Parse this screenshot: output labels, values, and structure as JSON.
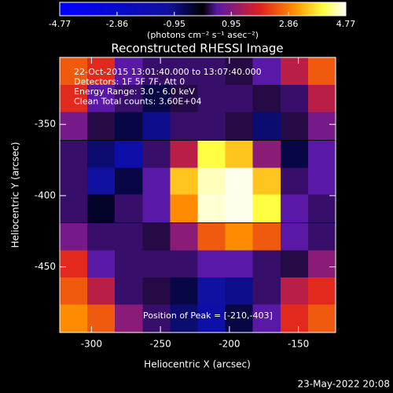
{
  "chart_data": {
    "type": "heatmap",
    "title": "Reconstructed RHESSI Image",
    "x_label": "Heliocentric X (arcsec)",
    "y_label": "Heliocentric Y (arcsec)",
    "colorbar_label": "(photons cm⁻² s⁻¹ asec⁻²)",
    "annotations": [
      "22-Oct-2015 13:01:40.000 to 13:07:40.000",
      "Detectors: 1F 5F 7F, Att 0",
      "Energy Range: 3.0 - 6.0 keV",
      "Clean    Total counts: 3.60E+04"
    ],
    "peak_label": "Position of Peak = [-210,-403]",
    "footer": "23-May-2022 20:08",
    "xlim": [
      -323,
      -123
    ],
    "ylim": [
      -496,
      -303
    ],
    "xticks": [
      -300,
      -250,
      -200,
      -150
    ],
    "yticks": [
      -350,
      -400,
      -450
    ],
    "clim": [
      -4.77,
      4.77
    ],
    "cticks": [
      -4.77,
      -2.86,
      -0.95,
      0.95,
      2.86,
      4.77
    ],
    "x": [
      -313,
      -293,
      -273,
      -253,
      -233,
      -213,
      -193,
      -173,
      -153,
      -133
    ],
    "y": [
      -313,
      -332,
      -351,
      -371,
      -390,
      -409,
      -429,
      -448,
      -467,
      -486
    ],
    "z": [
      [
        2.5,
        2.0,
        0.5,
        0.3,
        0.3,
        0.3,
        0.2,
        0.5,
        1.5,
        2.5
      ],
      [
        2.0,
        0.5,
        0.3,
        -0.5,
        0.2,
        0.3,
        0.3,
        0.2,
        0.3,
        1.5
      ],
      [
        0.8,
        0.2,
        -0.5,
        -1.0,
        0.3,
        0.3,
        0.2,
        -0.8,
        0.2,
        0.8
      ],
      [
        0.3,
        -0.8,
        -1.5,
        0.3,
        1.5,
        4.0,
        3.5,
        1.0,
        -0.5,
        0.5
      ],
      [
        0.3,
        -1.2,
        -0.5,
        0.5,
        3.5,
        4.5,
        4.7,
        3.5,
        0.3,
        0.5
      ],
      [
        0.3,
        -0.3,
        0.3,
        0.5,
        3.0,
        4.6,
        4.7,
        4.0,
        0.5,
        0.3
      ],
      [
        0.8,
        0.3,
        0.3,
        0.2,
        1.0,
        2.5,
        3.0,
        2.5,
        0.5,
        0.3
      ],
      [
        2.0,
        0.5,
        0.3,
        0.3,
        0.3,
        0.5,
        0.5,
        0.3,
        0.2,
        1.0
      ],
      [
        2.5,
        1.5,
        0.3,
        0.2,
        -0.5,
        -1.2,
        -1.0,
        0.3,
        1.5,
        2.0
      ],
      [
        3.0,
        2.5,
        1.0,
        0.3,
        -0.8,
        -1.5,
        -0.5,
        0.5,
        2.0,
        2.5
      ]
    ]
  }
}
